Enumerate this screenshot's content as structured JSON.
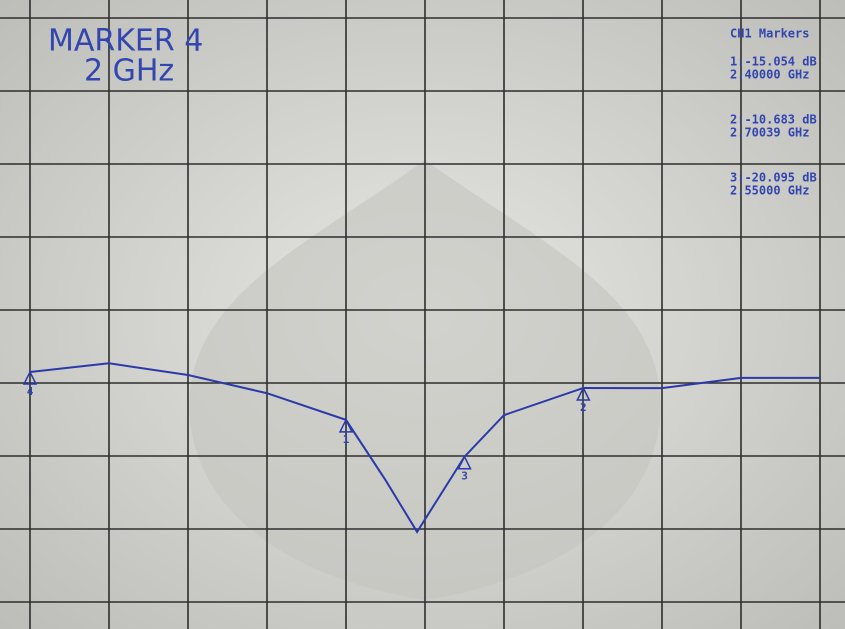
{
  "chart_data": {
    "type": "line",
    "title": "MARKER 4",
    "subtitle": "2 GHz",
    "marker_panel_title": "CH1 Markers",
    "x": [
      2.0,
      2.1,
      2.2,
      2.3,
      2.4,
      2.45,
      2.49,
      2.55,
      2.6,
      2.70039,
      2.8,
      2.9,
      3.0
    ],
    "series": [
      {
        "color": "#2b3aa8",
        "values": [
          -8.5,
          -7.3,
          -8.9,
          -11.4,
          -15.054,
          -23.3,
          -30.4,
          -20.095,
          -14.4,
          -10.683,
          -10.7,
          -9.3,
          -9.3
        ]
      }
    ],
    "markers": [
      {
        "label": "4",
        "x": 2.0
      },
      {
        "label": "1",
        "x": 2.4,
        "y": -15.054,
        "readout": [
          "1:-15.054 dB",
          "2.40000 GHz"
        ]
      },
      {
        "label": "2",
        "x": 2.70039,
        "y": -10.683,
        "readout": [
          "2:-10.683 dB",
          "2.70039 GHz"
        ]
      },
      {
        "label": "3",
        "x": 2.55,
        "y": -20.095,
        "readout": [
          "3:-20.095 dB",
          "2.55000 GHz"
        ]
      }
    ],
    "xlim": [
      2.0,
      3.0
    ],
    "xticks": [
      2.0,
      2.1,
      2.2,
      2.3,
      2.4,
      2.5,
      2.6,
      2.7,
      2.8,
      2.9,
      3.0
    ],
    "ylim": [
      -40,
      40
    ],
    "yticks": [
      -40,
      -30,
      -20,
      -10,
      0,
      10,
      20,
      30,
      40
    ],
    "grid": true
  }
}
